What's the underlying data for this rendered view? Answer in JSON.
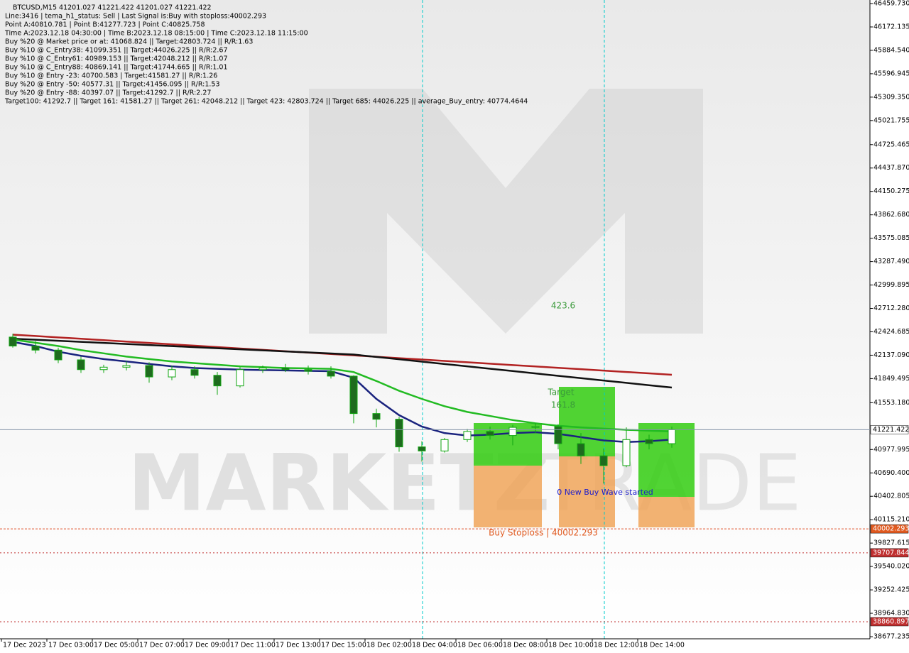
{
  "header": {
    "lines": [
      "BTCUSD,M15  41201.027 41221.422 41201.027 41221.422",
      "Line:3416 | tema_h1_status: Sell | Last Signal is:Buy with stoploss:40002.293",
      "Point A:40810.781 | Point B:41277.723 | Point C:40825.758",
      "Time A:2023.12.18 04:30:00 | Time B:2023.12.18 08:15:00 | Time C:2023.12.18 11:15:00",
      "Buy %20 @ Market price or at: 41068.824 || Target:42803.724 || R/R:1.63",
      "Buy %10 @ C_Entry38: 41099.351 || Target:44026.225 || R/R:2.67",
      "Buy %10 @ C_Entry61: 40989.153 || Target:42048.212 || R/R:1.07",
      "Buy %10 @ C_Entry88: 40869.141 || Target:41744.665 || R/R:1.01",
      "Buy %10 @ Entry -23: 40700.583 | Target:41581.27 || R/R:1.26",
      "Buy %20 @ Entry -50: 40577.31 || Target:41456.095 || R/R:1.53",
      "Buy %20 @ Entry -88: 40397.07 || Target:41292.7 || R/R:2.27",
      "Target100: 41292.7 || Target 161: 41581.27 || Target 261: 42048.212 || Target 423: 42803.724 || Target 685: 44026.225 || average_Buy_entry: 40774.4644"
    ]
  },
  "chart_data": {
    "type": "candlestick",
    "x": [
      "17 Dec 2023",
      null,
      "17 Dec 03:00",
      null,
      "17 Dec 05:00",
      null,
      "17 Dec 07:00",
      null,
      "17 Dec 09:00",
      null,
      "17 Dec 11:00",
      null,
      "17 Dec 13:00",
      null,
      "17 Dec 15:00",
      null,
      "18 Dec 02:00",
      null,
      "18 Dec 04:00",
      null,
      "18 Dec 06:00",
      null,
      "18 Dec 08:00",
      null,
      "18 Dec 10:00",
      null,
      "18 Dec 12:00",
      null,
      "18 Dec 14:00",
      null
    ],
    "open": [
      42360,
      42250,
      42200,
      42080,
      41960,
      41990,
      42010,
      41870,
      41960,
      41890,
      41760,
      41960,
      41980,
      41960,
      41940,
      41880,
      41420,
      41350,
      41010,
      40960,
      41100,
      41200,
      41150,
      41250,
      41260,
      41050,
      40900,
      40780,
      41100,
      41050
    ],
    "high": [
      42400,
      42310,
      42230,
      42120,
      42020,
      42060,
      42050,
      42010,
      42000,
      41930,
      41990,
      42010,
      42030,
      42010,
      42000,
      41890,
      41480,
      41380,
      41080,
      41120,
      41230,
      41260,
      41280,
      41300,
      41290,
      41180,
      40990,
      41250,
      41160,
      41260
    ],
    "low": [
      42230,
      42160,
      42040,
      41920,
      41920,
      41950,
      41800,
      41830,
      41850,
      41650,
      41740,
      41920,
      41930,
      41900,
      41850,
      41300,
      41250,
      40950,
      40830,
      40940,
      41070,
      41100,
      41030,
      41180,
      40980,
      40800,
      40560,
      40760,
      40980,
      41000
    ],
    "close": [
      42250,
      42200,
      42080,
      41960,
      41990,
      42010,
      41870,
      41960,
      41890,
      41760,
      41960,
      41980,
      41960,
      41940,
      41880,
      41420,
      41350,
      41010,
      40960,
      41100,
      41200,
      41150,
      41250,
      41260,
      41050,
      40900,
      40780,
      41100,
      41050,
      41221.422
    ],
    "up_color": "#ffffff",
    "down_color": "#1e6b1e",
    "candle_edge": "#11a611",
    "series": [
      {
        "color": "#b22222",
        "values": [
          42390,
          42373,
          42356,
          42339,
          42322,
          42305,
          42288,
          42271,
          42254,
          42237,
          42220,
          42203,
          42186,
          42169,
          42152,
          42135,
          42118,
          42101,
          42084,
          42067,
          42050,
          42033,
          42016,
          41999,
          41982,
          41965,
          41948,
          41931,
          41914,
          41897
        ]
      },
      {
        "color": "#111111",
        "values": [
          42340,
          42327,
          42314,
          42301,
          42288,
          42275,
          42262,
          42249,
          42236,
          42223,
          42210,
          42197,
          42184,
          42171,
          42158,
          42145,
          42116,
          42087,
          42058,
          42029,
          42000,
          41971,
          41942,
          41913,
          41884,
          41855,
          41826,
          41797,
          41768,
          41740
        ]
      },
      {
        "color": "#22bb22",
        "values": [
          42330,
          42290,
          42250,
          42200,
          42160,
          42120,
          42090,
          42060,
          42040,
          42020,
          42000,
          41990,
          41980,
          41975,
          41970,
          41930,
          41820,
          41700,
          41600,
          41510,
          41440,
          41390,
          41340,
          41300,
          41270,
          41250,
          41235,
          41220,
          41210,
          41200
        ]
      },
      {
        "color": "#1a237e",
        "values": [
          42300,
          42250,
          42180,
          42130,
          42090,
          42060,
          42030,
          42000,
          41980,
          41970,
          41960,
          41955,
          41950,
          41945,
          41940,
          41860,
          41600,
          41400,
          41260,
          41180,
          41150,
          41160,
          41180,
          41190,
          41170,
          41130,
          41090,
          41070,
          41080,
          41100
        ]
      }
    ],
    "ylim": [
      38677.235,
      46459.73
    ],
    "yticks": [
      {
        "value": 46459.73,
        "label": "46459.730"
      },
      46172.135,
      {
        "value": 45884.54,
        "label": "45884.540"
      },
      45596.945,
      {
        "value": 45309.35,
        "label": "45309.350"
      },
      45021.755,
      44725.465,
      {
        "value": 44437.87,
        "label": "44437.870"
      },
      44150.275,
      {
        "value": 43862.68,
        "label": "43862.680"
      },
      43575.085,
      {
        "value": 43287.49,
        "label": "43287.490"
      },
      42999.895,
      {
        "value": 42712.28,
        "label": "42712.280"
      },
      42424.685,
      {
        "value": 42137.09,
        "label": "42137.090"
      },
      41849.495,
      {
        "value": 41553.18,
        "label": "41553.180"
      },
      40977.995,
      {
        "value": 40690.4,
        "label": "40690.400"
      },
      40402.805,
      {
        "value": 40115.21,
        "label": "40115.210"
      },
      39827.615,
      {
        "value": 39540.02,
        "label": "39540.020"
      },
      39252.425,
      {
        "value": 38964.83,
        "label": "38964.830"
      },
      38677.235
    ],
    "hlines": [
      {
        "value": 41221.422,
        "color": "#8494a8",
        "label_color": "#000000",
        "dash": "none"
      },
      {
        "value": 40002.293,
        "color": "#e0502a",
        "label_color": "#e05a20",
        "dash": "3 2"
      },
      {
        "value": 39707.844,
        "color": "#c03030",
        "label_color": "#c03030",
        "dash": "2 3"
      },
      {
        "value": 38860.897,
        "color": "#c03030",
        "label_color": "#c03030",
        "dash": "2 3"
      }
    ],
    "annotations": [
      "423.6",
      "Target",
      "161.8",
      "0 New Buy Wave started",
      "Buy Stoploss | 40002.293"
    ]
  }
}
